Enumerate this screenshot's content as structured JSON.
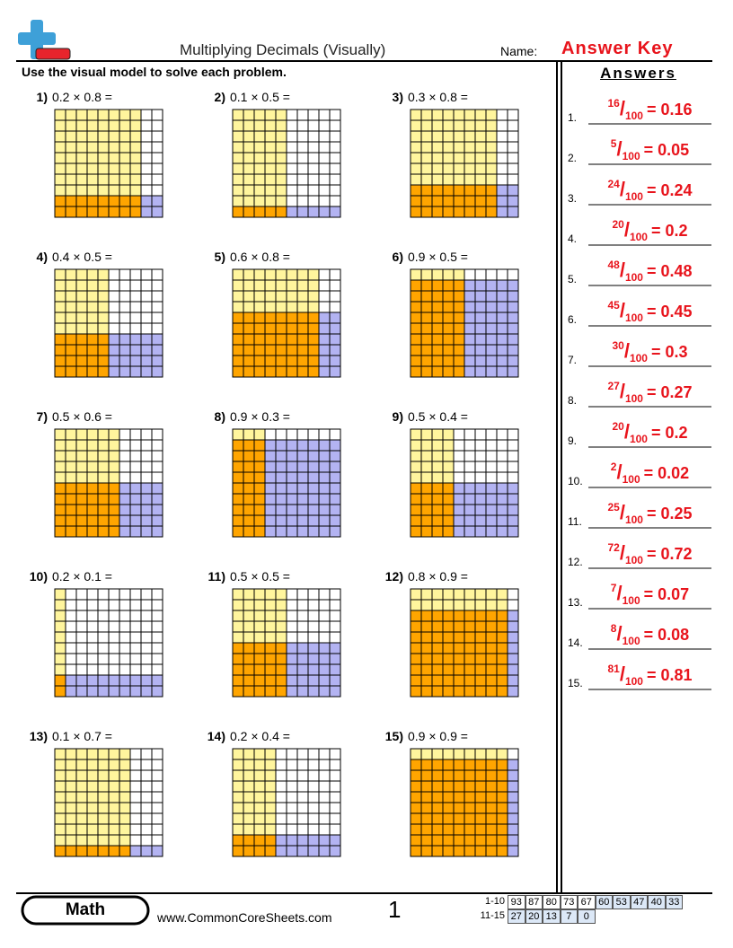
{
  "header": {
    "title": "Multiplying Decimals (Visually)",
    "name_label": "Name:",
    "name_value": "Answer Key",
    "instructions": "Use the visual model to solve each problem."
  },
  "problems": [
    {
      "label": "1)",
      "expression": "0.2 × 0.8 ="
    },
    {
      "label": "2)",
      "expression": "0.1 × 0.5 ="
    },
    {
      "label": "3)",
      "expression": "0.3 × 0.8 ="
    },
    {
      "label": "4)",
      "expression": "0.4 × 0.5 ="
    },
    {
      "label": "5)",
      "expression": "0.6 × 0.8 ="
    },
    {
      "label": "6)",
      "expression": "0.9 × 0.5 ="
    },
    {
      "label": "7)",
      "expression": "0.5 × 0.6 ="
    },
    {
      "label": "8)",
      "expression": "0.9 × 0.3 ="
    },
    {
      "label": "9)",
      "expression": "0.5 × 0.4 ="
    },
    {
      "label": "10)",
      "expression": "0.2 × 0.1 ="
    },
    {
      "label": "11)",
      "expression": "0.5 × 0.5 ="
    },
    {
      "label": "12)",
      "expression": "0.8 × 0.9 ="
    },
    {
      "label": "13)",
      "expression": "0.1 × 0.7 ="
    },
    {
      "label": "14)",
      "expression": "0.2 × 0.4 ="
    },
    {
      "label": "15)",
      "expression": "0.9 × 0.9 ="
    }
  ],
  "answers": {
    "heading": "Answers",
    "separator": "/",
    "items": [
      {
        "label": "1.",
        "numerator": "16",
        "denominator": "100",
        "result": "= 0.16"
      },
      {
        "label": "2.",
        "numerator": "5",
        "denominator": "100",
        "result": "= 0.05"
      },
      {
        "label": "3.",
        "numerator": "24",
        "denominator": "100",
        "result": "= 0.24"
      },
      {
        "label": "4.",
        "numerator": "20",
        "denominator": "100",
        "result": "= 0.2"
      },
      {
        "label": "5.",
        "numerator": "48",
        "denominator": "100",
        "result": "= 0.48"
      },
      {
        "label": "6.",
        "numerator": "45",
        "denominator": "100",
        "result": "= 0.45"
      },
      {
        "label": "7.",
        "numerator": "30",
        "denominator": "100",
        "result": "= 0.3"
      },
      {
        "label": "8.",
        "numerator": "27",
        "denominator": "100",
        "result": "= 0.27"
      },
      {
        "label": "9.",
        "numerator": "20",
        "denominator": "100",
        "result": "= 0.2"
      },
      {
        "label": "10.",
        "numerator": "2",
        "denominator": "100",
        "result": "= 0.02"
      },
      {
        "label": "11.",
        "numerator": "25",
        "denominator": "100",
        "result": "= 0.25"
      },
      {
        "label": "12.",
        "numerator": "72",
        "denominator": "100",
        "result": "= 0.72"
      },
      {
        "label": "13.",
        "numerator": "7",
        "denominator": "100",
        "result": "= 0.07"
      },
      {
        "label": "14.",
        "numerator": "8",
        "denominator": "100",
        "result": "= 0.08"
      },
      {
        "label": "15.",
        "numerator": "81",
        "denominator": "100",
        "result": "= 0.81"
      }
    ]
  },
  "footer": {
    "subject": "Math",
    "website": "www.CommonCoreSheets.com",
    "page_number": "1",
    "score_table": {
      "rows": [
        {
          "label": "1-10",
          "scores": [
            "93",
            "87",
            "80",
            "73",
            "67",
            "60",
            "53",
            "47",
            "40",
            "33"
          ]
        },
        {
          "label": "11-15",
          "scores": [
            "27",
            "20",
            "13",
            "7",
            "0"
          ]
        }
      ]
    }
  }
}
